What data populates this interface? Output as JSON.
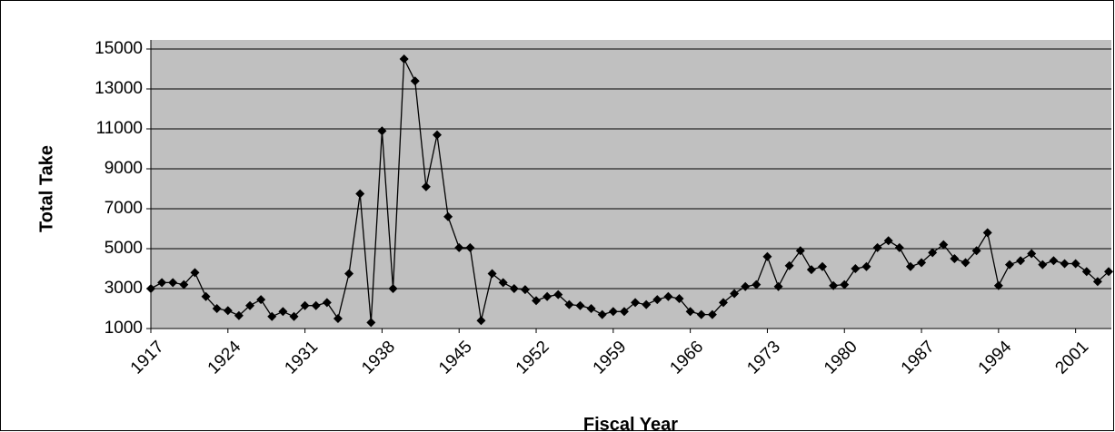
{
  "chart_data": {
    "type": "line",
    "x_label": "Fiscal Year",
    "y_label": "Total Take",
    "x": [
      1917,
      1918,
      1919,
      1920,
      1921,
      1922,
      1923,
      1924,
      1925,
      1926,
      1927,
      1928,
      1929,
      1930,
      1931,
      1932,
      1933,
      1934,
      1935,
      1936,
      1937,
      1938,
      1939,
      1940,
      1941,
      1942,
      1943,
      1944,
      1945,
      1946,
      1947,
      1948,
      1949,
      1950,
      1951,
      1952,
      1953,
      1954,
      1955,
      1956,
      1957,
      1958,
      1959,
      1960,
      1961,
      1962,
      1963,
      1964,
      1965,
      1966,
      1967,
      1968,
      1969,
      1970,
      1971,
      1972,
      1973,
      1974,
      1975,
      1976,
      1977,
      1978,
      1979,
      1980,
      1981,
      1982,
      1983,
      1984,
      1985,
      1986,
      1987,
      1988,
      1989,
      1990,
      1991,
      1992,
      1993,
      1994,
      1995,
      1996,
      1997,
      1998,
      1999,
      2000,
      2001,
      2002,
      2003,
      2004
    ],
    "values": [
      3000,
      3300,
      3300,
      3200,
      3800,
      2600,
      2000,
      1900,
      1650,
      2150,
      2450,
      1600,
      1850,
      1600,
      2150,
      2150,
      2300,
      1500,
      3750,
      7750,
      1300,
      10900,
      3000,
      14500,
      13400,
      8100,
      10700,
      6600,
      5050,
      5050,
      1400,
      3750,
      3300,
      3000,
      2950,
      2400,
      2600,
      2700,
      2200,
      2150,
      2000,
      1700,
      1850,
      1850,
      2300,
      2200,
      2450,
      2600,
      2500,
      1850,
      1700,
      1700,
      2300,
      2750,
      3100,
      3200,
      4600,
      3100,
      4150,
      4900,
      3950,
      4100,
      3150,
      3200,
      4000,
      4100,
      5050,
      5400,
      5050,
      4100,
      4300,
      4800,
      5200,
      4500,
      4300,
      4900,
      5800,
      3150,
      4200,
      4400,
      4750,
      4200,
      4400,
      4250,
      4250,
      3850,
      3350,
      3850
    ],
    "color": "#000000",
    "plot_color": "#c0c0c0",
    "xlim": [
      1917,
      2004
    ],
    "xticks": [
      1917,
      1924,
      1931,
      1938,
      1945,
      1952,
      1959,
      1966,
      1973,
      1980,
      1987,
      1994,
      2001
    ],
    "ylim": [
      1000,
      15000
    ],
    "yticks": [
      1000,
      3000,
      5000,
      7000,
      9000,
      11000,
      13000,
      15000
    ],
    "grid": true
  }
}
